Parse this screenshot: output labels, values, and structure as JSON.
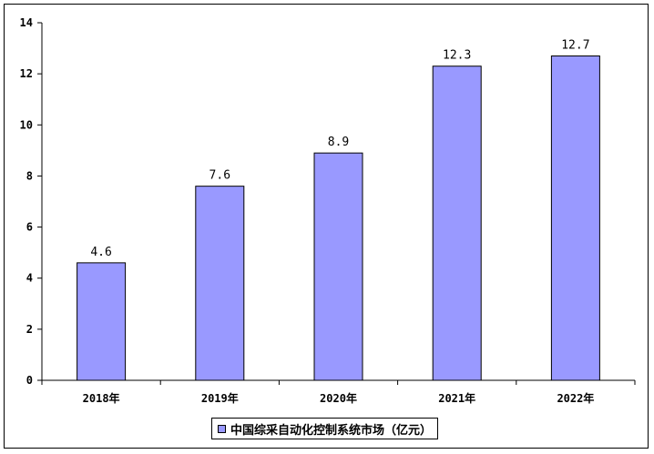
{
  "chart_data": {
    "type": "bar",
    "categories": [
      "2018年",
      "2019年",
      "2020年",
      "2021年",
      "2022年"
    ],
    "series": [
      {
        "name": "中国综采自动化控制系统市场（亿元）",
        "values": [
          4.6,
          7.6,
          8.9,
          12.3,
          12.7
        ]
      }
    ],
    "data_labels": [
      "4.6",
      "7.6",
      "8.9",
      "12.3",
      "12.7"
    ],
    "y_ticks": [
      "0",
      "2",
      "4",
      "6",
      "8",
      "10",
      "12",
      "14"
    ],
    "ylim": [
      0,
      14
    ],
    "grid": false,
    "legend_position": "bottom-center",
    "title": "",
    "xlabel": "",
    "ylabel": ""
  },
  "colors": {
    "bar_fill": "#9999ff",
    "bar_stroke": "#000000",
    "axis": "#000000"
  }
}
